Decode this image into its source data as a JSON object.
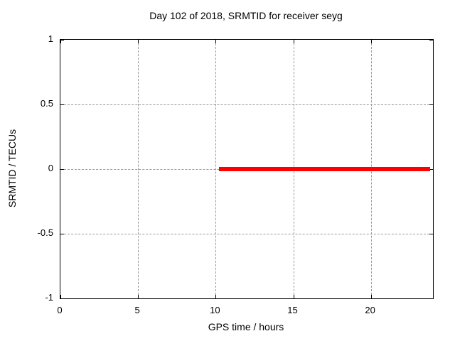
{
  "chart_data": {
    "type": "line",
    "title": "Day 102 of 2018, SRMTID for receiver seyg",
    "xlabel": "GPS time / hours",
    "ylabel": "SRMTID / TECUs",
    "xlim": [
      0,
      24
    ],
    "ylim": [
      -1,
      1
    ],
    "x_ticks": [
      0,
      5,
      10,
      15,
      20
    ],
    "x_tick_labels": [
      "0",
      "5",
      "10",
      "15",
      "20"
    ],
    "y_ticks": [
      -1,
      -0.5,
      0,
      0.5,
      1
    ],
    "y_tick_labels": [
      "-1",
      "-0.5",
      "0",
      "0.5",
      "1"
    ],
    "grid": true,
    "legend_position": "none",
    "colors": {
      "series": "#ff0000",
      "grid": "#999999",
      "border": "#000000",
      "text": "#000000",
      "background": "#ffffff"
    },
    "series": [
      {
        "name": "SRMTID",
        "color": "#ff0000",
        "style": "horizontal-segment",
        "y": 0,
        "x_start": 10.2,
        "x_end": 23.8,
        "thickness_px": 6
      }
    ]
  }
}
